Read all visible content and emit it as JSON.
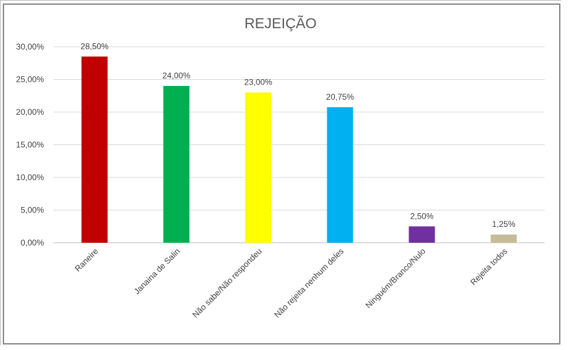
{
  "chart_data": {
    "type": "bar",
    "title": "REJEIÇÃO",
    "xlabel": "",
    "ylabel": "",
    "ylim": [
      0,
      30
    ],
    "y_ticks": [
      "0,00%",
      "5,00%",
      "10,00%",
      "15,00%",
      "20,00%",
      "25,00%",
      "30,00%"
    ],
    "y_tick_values": [
      0,
      5,
      10,
      15,
      20,
      25,
      30
    ],
    "grid": true,
    "legend": "none",
    "categories": [
      "Raneire",
      "Janaina de Salin",
      "Não sabe/Não respondeu",
      "Não rejeita nenhum deles",
      "Ninguém/Branco/Nulo",
      "Rejeita todos"
    ],
    "values": [
      28.5,
      24.0,
      23.0,
      20.75,
      2.5,
      1.25
    ],
    "data_labels": [
      "28,50%",
      "24,00%",
      "23,00%",
      "20,75%",
      "2,50%",
      "1,25%"
    ],
    "colors": [
      "#c00000",
      "#00b050",
      "#ffff00",
      "#00b0f0",
      "#7030a0",
      "#c4bd97"
    ]
  }
}
